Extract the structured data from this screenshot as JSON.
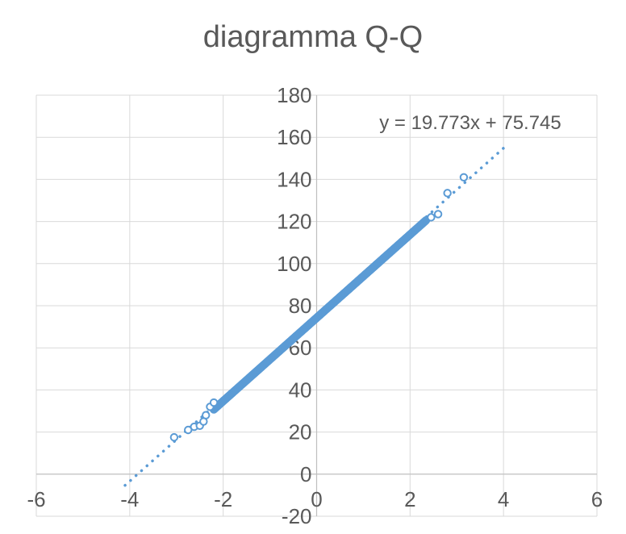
{
  "colors": {
    "marker": "#5b9bd5",
    "grid": "#d9d9d9",
    "text": "#595959",
    "title": "#595959"
  },
  "chart_data": {
    "type": "scatter",
    "title": "diagramma Q-Q",
    "xlabel": "",
    "ylabel": "",
    "xlim": [
      -6,
      6
    ],
    "ylim": [
      -20,
      180
    ],
    "x_ticks": [
      -6,
      -4,
      -2,
      0,
      2,
      4,
      6
    ],
    "y_ticks": [
      -20,
      0,
      20,
      40,
      60,
      80,
      100,
      120,
      140,
      160,
      180
    ],
    "x_tick_labels": [
      "-6",
      "-4",
      "-2",
      "0",
      "2",
      "4",
      "6"
    ],
    "y_tick_labels": [
      "-20",
      "0",
      "20",
      "40",
      "60",
      "80",
      "100",
      "120",
      "140",
      "160",
      "180"
    ],
    "grid": true,
    "legend": "none",
    "trendline": {
      "type": "linear",
      "slope": 19.773,
      "intercept": 75.745,
      "x_range": [
        -4.1,
        4.0
      ],
      "equation_label": "y = 19.773x + 75.745",
      "style": "dotted"
    },
    "outlier_points": [
      {
        "x": -3.05,
        "y": 17.5
      },
      {
        "x": -2.75,
        "y": 21
      },
      {
        "x": -2.62,
        "y": 22.5
      },
      {
        "x": -2.5,
        "y": 23
      },
      {
        "x": -2.42,
        "y": 25
      },
      {
        "x": -2.37,
        "y": 28
      },
      {
        "x": -2.28,
        "y": 32
      },
      {
        "x": -2.2,
        "y": 34
      },
      {
        "x": 2.45,
        "y": 122
      },
      {
        "x": 2.6,
        "y": 123.5
      },
      {
        "x": 2.8,
        "y": 133.5
      },
      {
        "x": 3.15,
        "y": 141
      }
    ],
    "dense_band": {
      "x_start": -2.2,
      "x_end": 2.35,
      "step": 0.02,
      "y_offset": -1.5
    }
  }
}
